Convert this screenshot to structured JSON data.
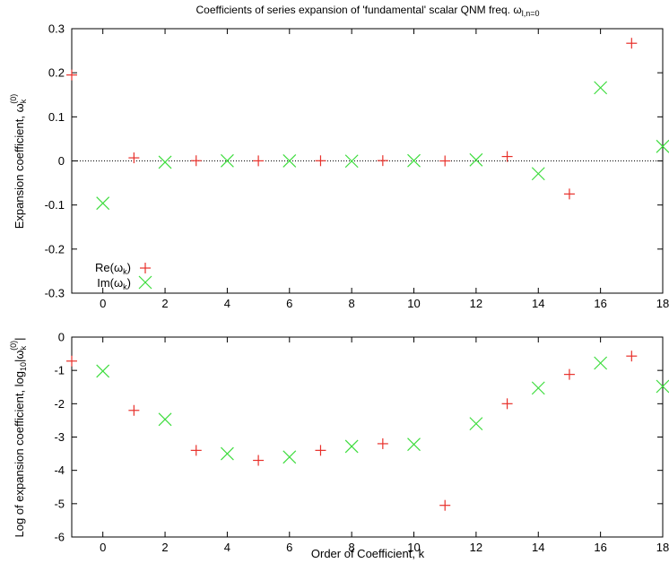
{
  "figure": {
    "title_main": "Coefficients of series expansion of 'fundamental' scalar QNM freq. ω",
    "title_subscript": "l,n=0"
  },
  "chart_data": [
    {
      "type": "scatter",
      "title": "",
      "ylabel_main": "Expansion coefficient, ω",
      "ylabel_sub": "k",
      "ylabel_sup": "(0)",
      "xlim": [
        -1,
        18
      ],
      "ylim": [
        -0.3,
        0.3
      ],
      "xticks": [
        0,
        2,
        4,
        6,
        8,
        10,
        12,
        14,
        16,
        18
      ],
      "yticks": [
        -0.3,
        -0.2,
        -0.1,
        0,
        0.1,
        0.2,
        0.3
      ],
      "ytick_labels": [
        "-0.3",
        "-0.2",
        "-0.1",
        "0",
        "0.1",
        "0.2",
        "0.3"
      ],
      "zero_line": true,
      "legend_position": "bottom-left",
      "series": [
        {
          "name_main": "Re(ω",
          "name_sub": "k",
          "name_end": ")",
          "marker": "plus",
          "color": "#e8302a",
          "x": [
            -1,
            1,
            3,
            5,
            7,
            9,
            11,
            13,
            15,
            17
          ],
          "y": [
            0.195,
            0.007,
            0.0005,
            0.0002,
            0.0004,
            0.0007,
            1e-05,
            0.01,
            -0.075,
            0.267
          ]
        },
        {
          "name_main": "Im(ω",
          "name_sub": "k",
          "name_end": ")",
          "marker": "cross",
          "color": "#3ddc3d",
          "x": [
            0,
            2,
            4,
            6,
            8,
            10,
            12,
            14,
            16,
            18
          ],
          "y": [
            -0.096,
            -0.003,
            0.0003,
            0.0002,
            -0.0005,
            0.0006,
            0.0025,
            -0.029,
            0.166,
            0.033
          ]
        }
      ]
    },
    {
      "type": "scatter",
      "title": "",
      "xlabel": "Order of Coefficient, k",
      "ylabel_main": "Log of expansion coefficient, log",
      "ylabel_sub1": "10",
      "ylabel_mid": "|ω",
      "ylabel_sub2": "k",
      "ylabel_sup": "(0)",
      "ylabel_end": "|",
      "xlim": [
        -1,
        18
      ],
      "ylim": [
        -6,
        0
      ],
      "xticks": [
        0,
        2,
        4,
        6,
        8,
        10,
        12,
        14,
        16,
        18
      ],
      "yticks": [
        -6,
        -5,
        -4,
        -3,
        -2,
        -1,
        0
      ],
      "ytick_labels": [
        "-6",
        "-5",
        "-4",
        "-3",
        "-2",
        "-1",
        "0"
      ],
      "series": [
        {
          "marker": "plus",
          "color": "#e8302a",
          "x": [
            -1,
            1,
            3,
            5,
            7,
            9,
            11,
            13,
            15,
            17
          ],
          "y": [
            -0.72,
            -2.2,
            -3.4,
            -3.7,
            -3.4,
            -3.2,
            -5.05,
            -2.0,
            -1.12,
            -0.57
          ]
        },
        {
          "marker": "cross",
          "color": "#3ddc3d",
          "x": [
            0,
            2,
            4,
            6,
            8,
            10,
            12,
            14,
            16,
            18
          ],
          "y": [
            -1.02,
            -2.47,
            -3.5,
            -3.6,
            -3.28,
            -3.22,
            -2.6,
            -1.53,
            -0.78,
            -1.48
          ]
        }
      ]
    }
  ]
}
